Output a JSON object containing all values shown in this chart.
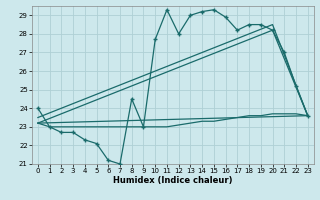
{
  "xlabel": "Humidex (Indice chaleur)",
  "xlim": [
    -0.5,
    23.5
  ],
  "ylim": [
    21,
    29.5
  ],
  "xticks": [
    0,
    1,
    2,
    3,
    4,
    5,
    6,
    7,
    8,
    9,
    10,
    11,
    12,
    13,
    14,
    15,
    16,
    17,
    18,
    19,
    20,
    21,
    22,
    23
  ],
  "yticks": [
    21,
    22,
    23,
    24,
    25,
    26,
    27,
    28,
    29
  ],
  "bg_color": "#cde8ec",
  "line_color": "#1a6b6b",
  "grid_color": "#afd0d5",
  "series1_x": [
    0,
    1,
    2,
    3,
    4,
    5,
    6,
    7,
    8,
    9,
    10,
    11,
    12,
    13,
    14,
    15,
    16,
    17,
    18,
    19,
    20,
    21,
    22,
    23
  ],
  "series1_y": [
    24.0,
    23.0,
    22.7,
    22.7,
    22.3,
    22.1,
    21.2,
    21.0,
    24.5,
    23.0,
    27.7,
    29.3,
    28.0,
    29.0,
    29.2,
    29.3,
    28.9,
    28.2,
    28.5,
    28.5,
    28.2,
    27.0,
    25.2,
    23.6
  ],
  "series2_x": [
    0,
    1,
    2,
    3,
    4,
    5,
    6,
    7,
    8,
    9,
    10,
    11,
    12,
    13,
    14,
    15,
    16,
    17,
    18,
    19,
    20,
    21,
    22,
    23
  ],
  "series2_y": [
    23.2,
    23.0,
    23.0,
    23.0,
    23.0,
    23.0,
    23.0,
    23.0,
    23.0,
    23.0,
    23.0,
    23.0,
    23.1,
    23.2,
    23.3,
    23.3,
    23.4,
    23.5,
    23.6,
    23.6,
    23.7,
    23.7,
    23.7,
    23.6
  ],
  "series3_x": [
    0,
    23
  ],
  "series3_y": [
    23.2,
    23.6
  ],
  "series4_x": [
    0,
    20,
    23
  ],
  "series4_y": [
    23.2,
    28.2,
    23.6
  ],
  "series5_x": [
    0,
    20,
    23
  ],
  "series5_y": [
    23.5,
    28.5,
    23.6
  ]
}
